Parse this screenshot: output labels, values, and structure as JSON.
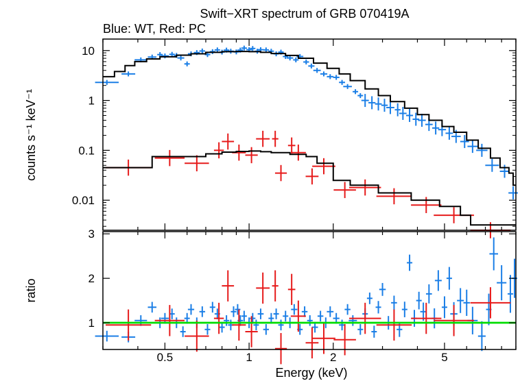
{
  "chart_data": [
    {
      "type": "scatter",
      "title": "Swift−XRT spectrum of GRB 070419A",
      "subtitle": "Blue: WT, Red: PC",
      "xlabel": "",
      "ylabel": "counts s⁻¹ keV⁻¹",
      "xscale": "log",
      "yscale": "log",
      "xlim": [
        0.3,
        9.0
      ],
      "ylim": [
        0.0025,
        17
      ],
      "xticks": [
        0.5,
        1,
        2,
        5
      ],
      "yticks": [
        {
          "value": 10,
          "label": "10"
        },
        {
          "value": 1,
          "label": "1"
        },
        {
          "value": 0.1,
          "label": "0.1"
        },
        {
          "value": 0.01,
          "label": "0.01"
        }
      ],
      "series": [
        {
          "key": "wt",
          "color": "#1a7ee6",
          "points": [
            [
              0.31,
              2.3
            ],
            [
              0.37,
              3.4
            ],
            [
              0.41,
              6.5
            ],
            [
              0.45,
              7.4
            ],
            [
              0.48,
              8.3
            ],
            [
              0.5,
              7.8
            ],
            [
              0.53,
              8.4
            ],
            [
              0.55,
              8.0
            ],
            [
              0.57,
              7.1
            ],
            [
              0.6,
              5.4
            ],
            [
              0.62,
              8.6
            ],
            [
              0.65,
              9.1
            ],
            [
              0.68,
              9.8
            ],
            [
              0.71,
              8.3
            ],
            [
              0.74,
              9.5
            ],
            [
              0.77,
              10.3
            ],
            [
              0.8,
              9.3
            ],
            [
              0.83,
              10.2
            ],
            [
              0.86,
              9.7
            ],
            [
              0.9,
              9.4
            ],
            [
              0.93,
              10.2
            ],
            [
              0.96,
              11.2
            ],
            [
              1.0,
              10.4
            ],
            [
              1.03,
              11.0
            ],
            [
              1.07,
              9.7
            ],
            [
              1.1,
              10.4
            ],
            [
              1.15,
              10.3
            ],
            [
              1.2,
              9.7
            ],
            [
              1.25,
              8.6
            ],
            [
              1.3,
              9.3
            ],
            [
              1.35,
              7.6
            ],
            [
              1.4,
              7.1
            ],
            [
              1.47,
              6.5
            ],
            [
              1.52,
              7.6
            ],
            [
              1.6,
              5.9
            ],
            [
              1.67,
              4.9
            ],
            [
              1.75,
              4.0
            ],
            [
              1.85,
              3.4
            ],
            [
              1.95,
              3.0
            ],
            [
              2.05,
              2.9
            ],
            [
              2.15,
              2.3
            ],
            [
              2.25,
              1.9
            ],
            [
              2.4,
              1.5
            ],
            [
              2.5,
              1.25
            ],
            [
              2.6,
              1.0
            ],
            [
              2.75,
              0.9
            ],
            [
              2.9,
              0.85
            ],
            [
              3.05,
              0.8
            ],
            [
              3.2,
              0.72
            ],
            [
              3.4,
              0.65
            ],
            [
              3.55,
              0.55
            ],
            [
              3.75,
              0.5
            ],
            [
              3.95,
              0.42
            ],
            [
              4.15,
              0.4
            ],
            [
              4.4,
              0.33
            ],
            [
              4.65,
              0.28
            ],
            [
              4.9,
              0.26
            ],
            [
              5.2,
              0.22
            ],
            [
              5.5,
              0.19
            ],
            [
              5.9,
              0.15
            ],
            [
              6.3,
              0.12
            ],
            [
              6.8,
              0.1
            ],
            [
              7.4,
              0.05
            ],
            [
              8.2,
              0.038
            ],
            [
              8.8,
              0.014
            ]
          ]
        },
        {
          "key": "pc",
          "color": "#e61a1a",
          "points": [
            [
              0.37,
              0.045
            ],
            [
              0.52,
              0.07
            ],
            [
              0.65,
              0.055
            ],
            [
              0.78,
              0.1
            ],
            [
              0.84,
              0.15
            ],
            [
              0.92,
              0.09
            ],
            [
              1.02,
              0.08
            ],
            [
              1.12,
              0.17
            ],
            [
              1.24,
              0.17
            ],
            [
              1.3,
              0.035
            ],
            [
              1.42,
              0.125
            ],
            [
              1.5,
              0.09
            ],
            [
              1.68,
              0.03
            ],
            [
              1.85,
              0.048
            ],
            [
              2.2,
              0.016
            ],
            [
              2.6,
              0.018
            ],
            [
              3.3,
              0.012
            ],
            [
              4.3,
              0.008
            ],
            [
              5.4,
              0.005
            ],
            [
              7.3,
              0.0025
            ]
          ]
        }
      ],
      "model_steps": [
        {
          "series": "wt",
          "points": [
            [
              0.3,
              3.0
            ],
            [
              0.33,
              3.8
            ],
            [
              0.36,
              5.0
            ],
            [
              0.39,
              6.0
            ],
            [
              0.43,
              6.8
            ],
            [
              0.48,
              7.5
            ],
            [
              0.55,
              8.1
            ],
            [
              0.62,
              8.6
            ],
            [
              0.7,
              9.2
            ],
            [
              0.8,
              9.5
            ],
            [
              0.9,
              9.6
            ],
            [
              1.0,
              9.5
            ],
            [
              1.1,
              9.2
            ],
            [
              1.2,
              8.7
            ],
            [
              1.35,
              8.0
            ],
            [
              1.5,
              7.0
            ],
            [
              1.7,
              5.6
            ],
            [
              1.9,
              4.4
            ],
            [
              2.1,
              3.4
            ],
            [
              2.3,
              2.5
            ],
            [
              2.6,
              1.7
            ],
            [
              2.9,
              1.25
            ],
            [
              3.2,
              0.95
            ],
            [
              3.6,
              0.7
            ],
            [
              4.0,
              0.52
            ],
            [
              4.4,
              0.4
            ],
            [
              4.9,
              0.3
            ],
            [
              5.4,
              0.23
            ],
            [
              6.0,
              0.16
            ],
            [
              6.6,
              0.11
            ],
            [
              7.3,
              0.07
            ],
            [
              7.9,
              0.045
            ],
            [
              8.5,
              0.035
            ],
            [
              8.8,
              0.02
            ],
            [
              9.0,
              0.02
            ]
          ]
        },
        {
          "series": "pc",
          "points": [
            [
              0.3,
              0.045
            ],
            [
              0.45,
              0.075
            ],
            [
              0.6,
              0.075
            ],
            [
              0.7,
              0.085
            ],
            [
              0.8,
              0.092
            ],
            [
              0.9,
              0.095
            ],
            [
              1.0,
              0.097
            ],
            [
              1.1,
              0.094
            ],
            [
              1.2,
              0.09
            ],
            [
              1.4,
              0.083
            ],
            [
              1.6,
              0.075
            ],
            [
              1.75,
              0.055
            ],
            [
              2.0,
              0.025
            ],
            [
              2.3,
              0.02
            ],
            [
              2.9,
              0.014
            ],
            [
              3.8,
              0.01
            ],
            [
              4.8,
              0.0075
            ],
            [
              5.7,
              0.005
            ],
            [
              6.2,
              0.0032
            ],
            [
              9.0,
              0.0032
            ]
          ]
        }
      ]
    },
    {
      "type": "scatter",
      "title": "",
      "xlabel": "Energy (keV)",
      "ylabel": "ratio",
      "xscale": "log",
      "yscale": "linear",
      "xlim": [
        0.3,
        9.0
      ],
      "ylim": [
        0.4,
        3.05
      ],
      "xticks": [
        0.5,
        1,
        2,
        5
      ],
      "yticks": [
        1,
        2,
        3
      ],
      "reference_line": {
        "y": 1,
        "color": "#00dd00"
      },
      "series": [
        {
          "key": "wt",
          "color": "#1a7ee6",
          "points": [
            [
              0.31,
              0.7
            ],
            [
              0.37,
              0.68
            ],
            [
              0.41,
              1.05
            ],
            [
              0.45,
              1.35
            ],
            [
              0.48,
              1.0
            ],
            [
              0.5,
              1.1
            ],
            [
              0.53,
              1.2
            ],
            [
              0.55,
              1.0
            ],
            [
              0.58,
              0.8
            ],
            [
              0.6,
              1.1
            ],
            [
              0.62,
              1.3
            ],
            [
              0.65,
              1.0
            ],
            [
              0.68,
              1.25
            ],
            [
              0.71,
              0.85
            ],
            [
              0.74,
              1.35
            ],
            [
              0.77,
              1.2
            ],
            [
              0.8,
              0.9
            ],
            [
              0.83,
              1.05
            ],
            [
              0.86,
              0.95
            ],
            [
              0.88,
              1.25
            ],
            [
              0.91,
              1.3
            ],
            [
              0.93,
              1.05
            ],
            [
              0.96,
              1.15
            ],
            [
              1.0,
              1.0
            ],
            [
              1.03,
              1.1
            ],
            [
              1.06,
              0.95
            ],
            [
              1.1,
              1.2
            ],
            [
              1.15,
              0.85
            ],
            [
              1.2,
              1.1
            ],
            [
              1.25,
              1.2
            ],
            [
              1.3,
              0.95
            ],
            [
              1.35,
              1.15
            ],
            [
              1.4,
              1.0
            ],
            [
              1.45,
              1.3
            ],
            [
              1.52,
              0.85
            ],
            [
              1.58,
              1.25
            ],
            [
              1.65,
              1.05
            ],
            [
              1.72,
              0.9
            ],
            [
              1.8,
              1.15
            ],
            [
              1.88,
              1.0
            ],
            [
              1.95,
              1.25
            ],
            [
              2.05,
              1.1
            ],
            [
              2.15,
              0.95
            ],
            [
              2.25,
              1.3
            ],
            [
              2.35,
              1.05
            ],
            [
              2.5,
              0.85
            ],
            [
              2.6,
              1.2
            ],
            [
              2.7,
              1.55
            ],
            [
              2.8,
              0.8
            ],
            [
              2.9,
              1.35
            ],
            [
              3.0,
              1.75
            ],
            [
              3.15,
              1.0
            ],
            [
              3.3,
              1.45
            ],
            [
              3.45,
              0.85
            ],
            [
              3.6,
              1.3
            ],
            [
              3.75,
              2.35
            ],
            [
              3.9,
              1.1
            ],
            [
              4.05,
              1.5
            ],
            [
              4.2,
              1.25
            ],
            [
              4.4,
              1.65
            ],
            [
              4.6,
              1.1
            ],
            [
              4.75,
              1.95
            ],
            [
              5.0,
              1.35
            ],
            [
              5.2,
              2.0
            ],
            [
              5.4,
              1.2
            ],
            [
              5.7,
              1.5
            ],
            [
              6.0,
              1.45
            ],
            [
              6.3,
              1.05
            ],
            [
              6.8,
              0.7
            ],
            [
              7.2,
              1.3
            ],
            [
              7.5,
              2.55
            ],
            [
              8.0,
              1.9
            ],
            [
              8.6,
              1.65
            ],
            [
              8.9,
              2.0
            ]
          ]
        },
        {
          "key": "pc",
          "color": "#e61a1a",
          "points": [
            [
              0.37,
              0.95
            ],
            [
              0.52,
              1.05
            ],
            [
              0.65,
              0.7
            ],
            [
              0.78,
              1.1
            ],
            [
              0.84,
              1.83
            ],
            [
              0.92,
              0.95
            ],
            [
              1.02,
              0.8
            ],
            [
              1.12,
              1.78
            ],
            [
              1.24,
              1.83
            ],
            [
              1.3,
              0.42
            ],
            [
              1.42,
              1.75
            ],
            [
              1.5,
              1.15
            ],
            [
              1.68,
              0.55
            ],
            [
              1.85,
              0.65
            ],
            [
              2.2,
              0.62
            ],
            [
              2.6,
              1.1
            ],
            [
              3.3,
              0.95
            ],
            [
              4.3,
              1.1
            ],
            [
              5.4,
              1.05
            ],
            [
              7.3,
              1.45
            ]
          ]
        }
      ]
    }
  ]
}
